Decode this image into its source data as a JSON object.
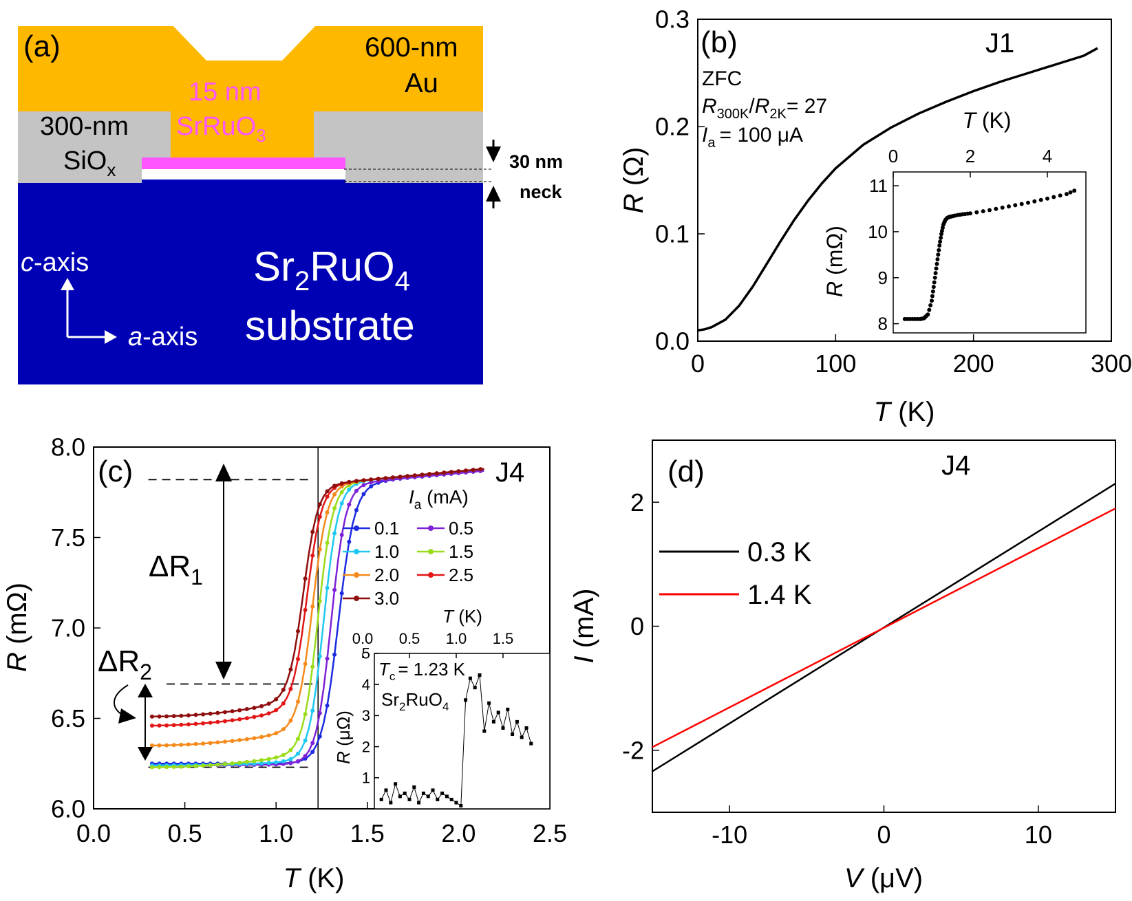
{
  "colors": {
    "gold": "#FFB800",
    "navy": "#0000B4",
    "magenta": "#FF55FF",
    "grey": "#C4C4C4",
    "white": "#FFFFFF",
    "black": "#000000",
    "red": "#FF0000"
  },
  "panel_a": {
    "label": "(a)",
    "au_label_1": "600-nm",
    "au_label_2": "Au",
    "sro_label_1": "15 nm",
    "sro_label_2": "SrRuO",
    "sro_sub": "3",
    "sio_label_1": "300-nm",
    "sio_label_2": "SiO",
    "sio_sub": "x",
    "neck_label_1": "30 nm",
    "neck_label_2": "neck",
    "c_axis_letter": "c",
    "c_axis_rest": "-axis",
    "a_axis_letter": "a",
    "a_axis_rest": "-axis",
    "substrate_1a": "Sr",
    "substrate_1b": "2",
    "substrate_1c": "RuO",
    "substrate_1d": "4",
    "substrate_2": "substrate"
  },
  "chart_data": [
    {
      "panel": "b",
      "type": "line",
      "label": "(b)",
      "sample": "J1",
      "xlabel_var": "T",
      "xlabel_unit": " (K)",
      "ylabel_var": "R",
      "ylabel_unit": " (Ω)",
      "xlim": [
        0,
        300
      ],
      "ylim": [
        0,
        0.3
      ],
      "xticks": [
        "0",
        "100",
        "200",
        "300"
      ],
      "yticks": [
        "0.0",
        "0.1",
        "0.2",
        "0.3"
      ],
      "annotations": {
        "zfc": "ZFC",
        "ratio_r1": "R",
        "ratio_s1": "300K",
        "ratio_slash": "/",
        "ratio_r2": "R",
        "ratio_s2": "2K",
        "ratio_val": "= 27",
        "ia_var": "I",
        "ia_sub": "a",
        "ia_val": "= 100 μA"
      },
      "x": [
        0,
        5,
        10,
        20,
        30,
        40,
        50,
        60,
        70,
        80,
        90,
        100,
        120,
        140,
        160,
        180,
        200,
        220,
        240,
        260,
        280,
        290
      ],
      "y": [
        0.01,
        0.011,
        0.013,
        0.02,
        0.033,
        0.051,
        0.072,
        0.093,
        0.113,
        0.131,
        0.147,
        0.161,
        0.183,
        0.199,
        0.212,
        0.223,
        0.233,
        0.242,
        0.25,
        0.258,
        0.266,
        0.273
      ],
      "inset": {
        "type": "scatter",
        "xlabel_var": "T",
        "xlabel_unit": " (K)",
        "ylabel_var": "R",
        "ylabel_unit": " (mΩ)",
        "xlim": [
          0,
          5
        ],
        "ylim": [
          7.8,
          11.3
        ],
        "xticks": [
          "0",
          "2",
          "4"
        ],
        "yticks": [
          "8",
          "9",
          "10",
          "11"
        ],
        "x": [
          0.3,
          0.5,
          0.7,
          0.8,
          0.9,
          1.0,
          1.05,
          1.1,
          1.15,
          1.2,
          1.25,
          1.3,
          1.35,
          1.4,
          1.45,
          1.5,
          1.6,
          1.8,
          2.0,
          2.5,
          3.0,
          3.5,
          4.0,
          4.5,
          4.8
        ],
        "y": [
          8.1,
          8.1,
          8.1,
          8.12,
          8.2,
          8.5,
          8.8,
          9.1,
          9.4,
          9.7,
          9.95,
          10.15,
          10.25,
          10.3,
          10.32,
          10.33,
          10.35,
          10.38,
          10.4,
          10.47,
          10.55,
          10.63,
          10.72,
          10.82,
          10.93
        ]
      }
    },
    {
      "panel": "c",
      "type": "line",
      "label": "(c)",
      "sample": "J4",
      "xlabel_var": "T",
      "xlabel_unit": " (K)",
      "ylabel_var": "R",
      "ylabel_unit": " (mΩ)",
      "xlim": [
        0,
        2.5
      ],
      "ylim": [
        6.0,
        8.0
      ],
      "xticks": [
        "0.0",
        "0.5",
        "1.0",
        "1.5",
        "2.0",
        "2.5"
      ],
      "yticks": [
        "6.0",
        "6.5",
        "7.0",
        "7.5",
        "8.0"
      ],
      "legend_title_var": "I",
      "legend_title_sub": "a",
      "legend_title_unit": " (mA)",
      "vline_T": 1.23,
      "dashed_levels": [
        7.82,
        6.69,
        6.23
      ],
      "delta_r1": "ΔR",
      "delta_r1_sub": "1",
      "delta_r2": "ΔR",
      "delta_r2_sub": "2",
      "series": [
        {
          "name": "0.1",
          "color": "#1C2BE0",
          "Tc": 1.34,
          "w": 0.045,
          "low": 6.25,
          "slope": 0.0,
          "high": 7.79
        },
        {
          "name": "0.5",
          "color": "#7E22D8",
          "Tc": 1.3,
          "w": 0.04,
          "low": 6.24,
          "slope": 0.01,
          "high": 7.79
        },
        {
          "name": "1.0",
          "color": "#1EC8F0",
          "Tc": 1.26,
          "w": 0.04,
          "low": 6.24,
          "slope": 0.03,
          "high": 7.8
        },
        {
          "name": "1.5",
          "color": "#9ADC1A",
          "Tc": 1.23,
          "w": 0.04,
          "low": 6.23,
          "slope": 0.1,
          "high": 7.8
        },
        {
          "name": "2.0",
          "color": "#F58A1C",
          "Tc": 1.2,
          "w": 0.04,
          "low": 6.35,
          "slope": 0.12,
          "high": 7.8
        },
        {
          "name": "2.5",
          "color": "#E21616",
          "Tc": 1.17,
          "w": 0.04,
          "low": 6.46,
          "slope": 0.14,
          "high": 7.8
        },
        {
          "name": "3.0",
          "color": "#8E0E0E",
          "Tc": 1.15,
          "w": 0.04,
          "low": 6.51,
          "slope": 0.14,
          "high": 7.8
        }
      ],
      "inset": {
        "type": "scatter",
        "xlabel_var": "T",
        "xlabel_unit": " (K)",
        "ylabel_var": "R",
        "ylabel_unit": " (μΩ)",
        "xlim": [
          0,
          2.0
        ],
        "ylim": [
          0,
          5
        ],
        "xticks": [
          "0.0",
          "0.5",
          "1.0",
          "1.5"
        ],
        "yticks": [
          "1",
          "2",
          "3",
          "4",
          "5"
        ],
        "tc_var": "T",
        "tc_sub": "c",
        "tc_val": "= 1.23 K",
        "material_a": "Sr",
        "material_b": "2",
        "material_c": "RuO",
        "material_d": "4",
        "x": [
          0.2,
          0.25,
          0.3,
          0.35,
          0.4,
          0.45,
          0.5,
          0.55,
          0.6,
          0.65,
          0.7,
          0.75,
          0.8,
          0.85,
          0.9,
          0.95,
          1.0,
          1.05,
          1.1,
          1.15,
          1.2,
          1.25,
          1.3,
          1.35,
          1.4,
          1.45,
          1.5,
          1.55,
          1.6,
          1.65,
          1.7,
          1.75,
          1.8
        ],
        "y": [
          0.3,
          0.6,
          0.2,
          0.8,
          0.4,
          0.5,
          0.3,
          0.7,
          0.2,
          0.5,
          0.4,
          0.6,
          0.3,
          0.5,
          0.4,
          0.3,
          0.2,
          0.1,
          3.5,
          4.2,
          3.9,
          4.3,
          2.5,
          3.4,
          2.8,
          3.1,
          2.6,
          3.2,
          2.4,
          2.8,
          2.3,
          2.6,
          2.1
        ]
      }
    },
    {
      "panel": "d",
      "type": "line",
      "label": "(d)",
      "sample": "J4",
      "xlabel_var": "V",
      "xlabel_unit": " (μV)",
      "ylabel_var": "I",
      "ylabel_unit": " (mA)",
      "xlim": [
        -15,
        15
      ],
      "ylim": [
        -3,
        3
      ],
      "xticks": [
        "-10",
        "0",
        "10"
      ],
      "yticks": [
        "-2",
        "0",
        "2"
      ],
      "series": [
        {
          "name": "0.3 K",
          "color": "#000000",
          "x": [
            -15,
            15
          ],
          "y": [
            -2.34,
            2.3
          ]
        },
        {
          "name": "1.4 K",
          "color": "#FF0000",
          "x": [
            -15,
            15
          ],
          "y": [
            -1.95,
            1.9
          ]
        }
      ]
    }
  ]
}
